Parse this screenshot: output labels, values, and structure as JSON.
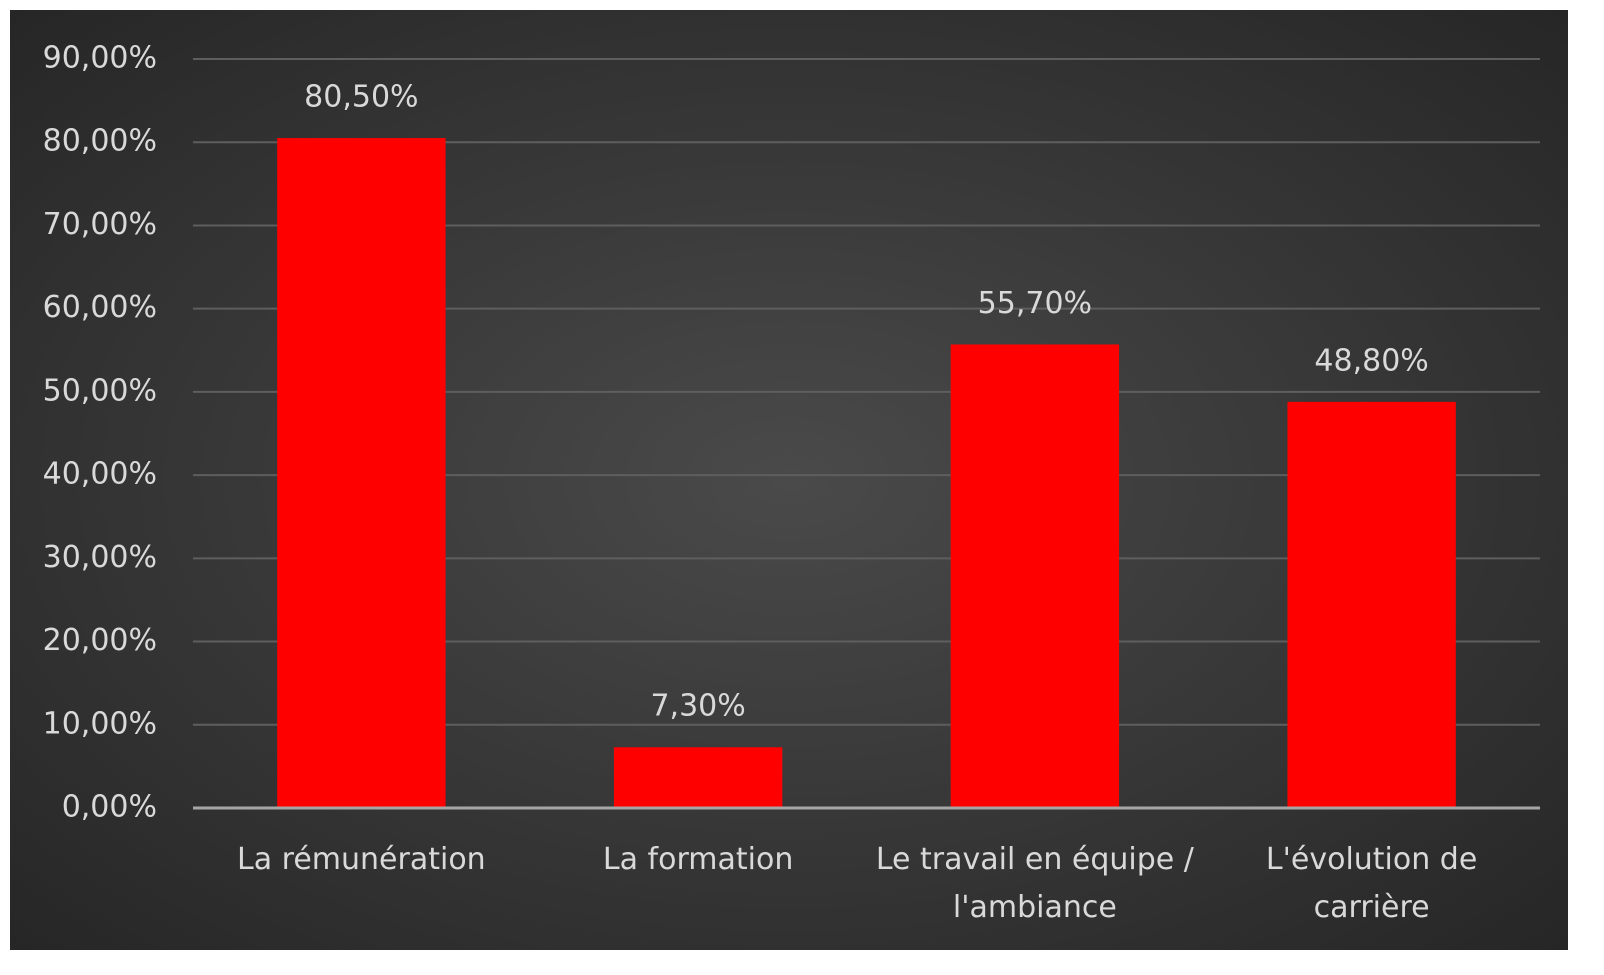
{
  "chart_data": {
    "type": "bar",
    "categories": [
      "La rémunération",
      "La formation",
      "Le travail en équipe / l'ambiance",
      "L'évolution de carrière"
    ],
    "values": [
      80.5,
      7.3,
      55.7,
      48.8
    ],
    "value_labels": [
      "80,50%",
      "7,30%",
      "55,70%",
      "48,80%"
    ],
    "color": "#ff0000",
    "ylim": [
      0,
      90
    ],
    "yticks": [
      {
        "value": 0,
        "label": "0,00%"
      },
      {
        "value": 10,
        "label": "10,00%"
      },
      {
        "value": 20,
        "label": "20,00%"
      },
      {
        "value": 30,
        "label": "30,00%"
      },
      {
        "value": 40,
        "label": "40,00%"
      },
      {
        "value": 50,
        "label": "50,00%"
      },
      {
        "value": 60,
        "label": "60,00%"
      },
      {
        "value": 70,
        "label": "70,00%"
      },
      {
        "value": 80,
        "label": "80,00%"
      },
      {
        "value": 90,
        "label": "90,00%"
      }
    ],
    "grid": true
  }
}
